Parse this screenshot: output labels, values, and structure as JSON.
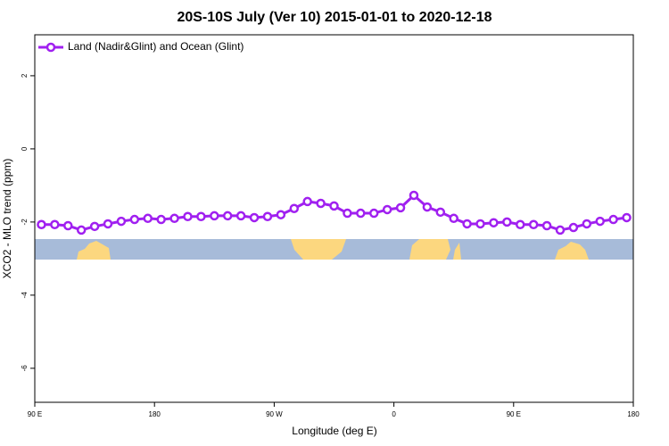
{
  "chart_data": {
    "type": "line",
    "title": "20S-10S July (Ver 10)   2015-01-01 to 2020-12-18",
    "x_label": "Longitude (deg E)",
    "y_label": "XCO2 - MLO trend (ppm)",
    "xlim": [
      90,
      540
    ],
    "ylim": [
      -6.93,
      3.12
    ],
    "xticks": [
      {
        "value": 90,
        "label": "90 E"
      },
      180,
      {
        "value": 270,
        "label": "90 W"
      },
      {
        "value": 360,
        "label": "0"
      },
      {
        "value": 450,
        "label": "90 E"
      },
      {
        "value": 540,
        "label": "180"
      }
    ],
    "yticks": [
      2,
      0,
      -2,
      -4,
      -6
    ],
    "legend": "top-left",
    "series": [
      {
        "name": "Land (Nadir&Glint) and Ocean (Glint)",
        "color": "#a020f0",
        "x": [
          95,
          105,
          115,
          125,
          135,
          145,
          155,
          165,
          175,
          185,
          195,
          205,
          215,
          225,
          235,
          245,
          255,
          265,
          275,
          285,
          295,
          305,
          315,
          325,
          335,
          345,
          355,
          365,
          375,
          385,
          395,
          405,
          415,
          425,
          435,
          445,
          455,
          465,
          475,
          485,
          495,
          505,
          515,
          525,
          535
        ],
        "values": [
          -2.07,
          -2.07,
          -2.1,
          -2.22,
          -2.12,
          -2.05,
          -1.98,
          -1.93,
          -1.9,
          -1.93,
          -1.9,
          -1.85,
          -1.85,
          -1.83,
          -1.83,
          -1.83,
          -1.88,
          -1.85,
          -1.8,
          -1.63,
          -1.44,
          -1.49,
          -1.56,
          -1.76,
          -1.76,
          -1.76,
          -1.66,
          -1.61,
          -1.27,
          -1.59,
          -1.73,
          -1.9,
          -2.05,
          -2.05,
          -2.02,
          -2.0,
          -2.07,
          -2.07,
          -2.1,
          -2.22,
          -2.15,
          -2.05,
          -1.98,
          -1.93,
          -1.88
        ]
      }
    ]
  }
}
